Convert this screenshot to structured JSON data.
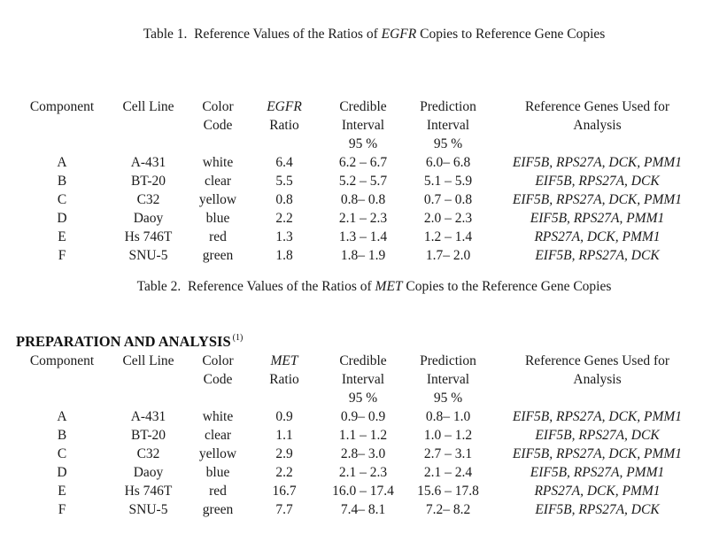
{
  "table1": {
    "caption": {
      "prefix": "Table 1.  Reference Values of the Ratios of ",
      "gene": "EGFR",
      "suffix": " Copies to Reference Gene Copies"
    },
    "headers": {
      "component": "Component",
      "cell_line": "Cell Line",
      "color_code": [
        "Color",
        "Code"
      ],
      "ratio_gene": "EGFR",
      "ratio_label": "Ratio",
      "credible": [
        "Credible",
        "Interval",
        "95 %"
      ],
      "prediction": [
        "Prediction",
        "Interval",
        "95 %"
      ],
      "reference_genes": [
        "Reference Genes Used for",
        "Analysis"
      ]
    },
    "rows": [
      {
        "component": "A",
        "cell_line": "A-431",
        "color_code": "white",
        "ratio": "6.4",
        "credible_interval": "6.2 – 6.7",
        "prediction_interval": "6.0– 6.8",
        "reference_genes": "EIF5B, RPS27A, DCK, PMM1"
      },
      {
        "component": "B",
        "cell_line": "BT-20",
        "color_code": "clear",
        "ratio": "5.5",
        "credible_interval": "5.2 – 5.7",
        "prediction_interval": "5.1 – 5.9",
        "reference_genes": "EIF5B, RPS27A, DCK"
      },
      {
        "component": "C",
        "cell_line": "C32",
        "color_code": "yellow",
        "ratio": "0.8",
        "credible_interval": "0.8– 0.8",
        "prediction_interval": "0.7 – 0.8",
        "reference_genes": "EIF5B, RPS27A, DCK, PMM1"
      },
      {
        "component": "D",
        "cell_line": "Daoy",
        "color_code": "blue",
        "ratio": "2.2",
        "credible_interval": "2.1 – 2.3",
        "prediction_interval": "2.0 – 2.3",
        "reference_genes": "EIF5B, RPS27A, PMM1"
      },
      {
        "component": "E",
        "cell_line": "Hs 746T",
        "color_code": "red",
        "ratio": "1.3",
        "credible_interval": "1.3 – 1.4",
        "prediction_interval": "1.2 – 1.4",
        "reference_genes": "RPS27A, DCK, PMM1"
      },
      {
        "component": "F",
        "cell_line": "SNU-5",
        "color_code": "green",
        "ratio": "1.8",
        "credible_interval": "1.8– 1.9",
        "prediction_interval": "1.7– 2.0",
        "reference_genes": "EIF5B, RPS27A, DCK"
      }
    ]
  },
  "table2": {
    "caption": {
      "prefix": "Table 2.  Reference Values of the Ratios of ",
      "gene": "MET",
      "suffix": " Copies to the Reference Gene Copies"
    },
    "headers": {
      "component": "Component",
      "cell_line": "Cell Line",
      "color_code": [
        "Color",
        "Code"
      ],
      "ratio_gene": "MET",
      "ratio_label": "Ratio",
      "credible": [
        "Credible",
        "Interval",
        "95 %"
      ],
      "prediction": [
        "Prediction",
        "Interval",
        "95 %"
      ],
      "reference_genes": [
        "Reference Genes Used for",
        "Analysis"
      ]
    },
    "rows": [
      {
        "component": "A",
        "cell_line": "A-431",
        "color_code": "white",
        "ratio": "0.9",
        "credible_interval": "0.9– 0.9",
        "prediction_interval": "0.8– 1.0",
        "reference_genes": "EIF5B, RPS27A, DCK, PMM1"
      },
      {
        "component": "B",
        "cell_line": "BT-20",
        "color_code": "clear",
        "ratio": "1.1",
        "credible_interval": "1.1 – 1.2",
        "prediction_interval": "1.0 – 1.2",
        "reference_genes": "EIF5B, RPS27A, DCK"
      },
      {
        "component": "C",
        "cell_line": "C32",
        "color_code": "yellow",
        "ratio": "2.9",
        "credible_interval": "2.8– 3.0",
        "prediction_interval": "2.7 – 3.1",
        "reference_genes": "EIF5B, RPS27A, DCK, PMM1"
      },
      {
        "component": "D",
        "cell_line": "Daoy",
        "color_code": "blue",
        "ratio": "2.2",
        "credible_interval": "2.1 – 2.3",
        "prediction_interval": "2.1 – 2.4",
        "reference_genes": "EIF5B, RPS27A, PMM1"
      },
      {
        "component": "E",
        "cell_line": "Hs 746T",
        "color_code": "red",
        "ratio": "16.7",
        "credible_interval": "16.0 – 17.4",
        "prediction_interval": "15.6 – 17.8",
        "reference_genes": "RPS27A, DCK, PMM1"
      },
      {
        "component": "F",
        "cell_line": "SNU-5",
        "color_code": "green",
        "ratio": "7.7",
        "credible_interval": "7.4– 8.1",
        "prediction_interval": "7.2– 8.2",
        "reference_genes": "EIF5B, RPS27A, DCK"
      }
    ]
  },
  "section_heading": {
    "text": "PREPARATION AND ANALYSIS",
    "footnote_marker": "(1)"
  }
}
